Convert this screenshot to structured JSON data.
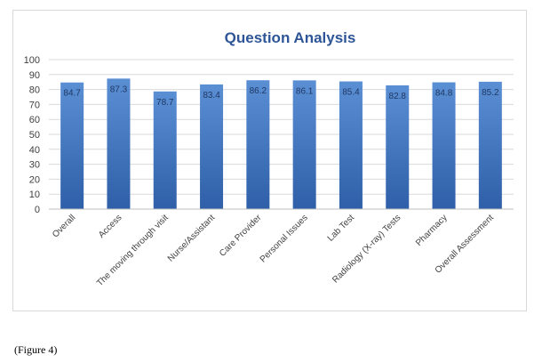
{
  "caption": "(Figure 4)",
  "colors": {
    "bar_top": "#5b8fd4",
    "bar_bottom": "#2e5fa8",
    "title": "#2e5597",
    "axis_text": "#404040",
    "grid": "#d9d9d9"
  },
  "chart_data": {
    "type": "bar",
    "title": "Question Analysis",
    "xlabel": "",
    "ylabel": "",
    "ylim": [
      0,
      100
    ],
    "yticks": [
      0,
      10,
      20,
      30,
      40,
      50,
      60,
      70,
      80,
      90,
      100
    ],
    "grid": true,
    "categories": [
      "Overall",
      "Access",
      "The moving through visit",
      "Nurse/Assistant",
      "Care Provider",
      "Personal Issues",
      "Lab Test",
      "Radiology (X-ray) Tests",
      "Pharmacy",
      "Overall Assessment"
    ],
    "values": [
      84.7,
      87.3,
      78.7,
      83.4,
      86.2,
      86.1,
      85.4,
      82.8,
      84.8,
      85.2
    ],
    "data_labels": [
      "84.7",
      "87.3",
      "78.7",
      "83.4",
      "86.2",
      "86.1",
      "85.4",
      "82.8",
      "84.8",
      "85.2"
    ]
  }
}
